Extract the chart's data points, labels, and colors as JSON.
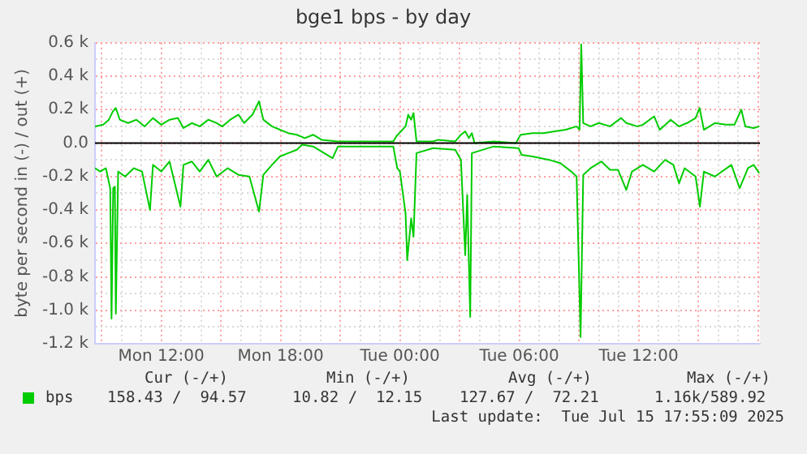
{
  "chart_data": {
    "type": "line",
    "title": "bge1 bps - by day",
    "ylabel": "byte per second in (-) / out (+)",
    "xlim": [
      "2025-07-14T08:40",
      "2025-07-15T18:06"
    ],
    "xticks": [
      {
        "value": "2025-07-14T09:00",
        "label": null
      },
      {
        "value": "2025-07-14T10:00",
        "label": null
      },
      {
        "value": "2025-07-14T11:00",
        "label": null
      },
      {
        "value": "2025-07-14T12:00",
        "label": "Mon 12:00"
      },
      {
        "value": "2025-07-14T13:00",
        "label": null
      },
      {
        "value": "2025-07-14T14:00",
        "label": null
      },
      {
        "value": "2025-07-14T15:00",
        "label": null
      },
      {
        "value": "2025-07-14T16:00",
        "label": null
      },
      {
        "value": "2025-07-14T17:00",
        "label": null
      },
      {
        "value": "2025-07-14T18:00",
        "label": "Mon 18:00"
      },
      {
        "value": "2025-07-14T19:00",
        "label": null
      },
      {
        "value": "2025-07-14T20:00",
        "label": null
      },
      {
        "value": "2025-07-14T21:00",
        "label": null
      },
      {
        "value": "2025-07-14T22:00",
        "label": null
      },
      {
        "value": "2025-07-14T23:00",
        "label": null
      },
      {
        "value": "2025-07-15T00:00",
        "label": "Tue 00:00"
      },
      {
        "value": "2025-07-15T01:00",
        "label": null
      },
      {
        "value": "2025-07-15T02:00",
        "label": null
      },
      {
        "value": "2025-07-15T03:00",
        "label": null
      },
      {
        "value": "2025-07-15T04:00",
        "label": null
      },
      {
        "value": "2025-07-15T05:00",
        "label": null
      },
      {
        "value": "2025-07-15T06:00",
        "label": "Tue 06:00"
      },
      {
        "value": "2025-07-15T07:00",
        "label": null
      },
      {
        "value": "2025-07-15T08:00",
        "label": null
      },
      {
        "value": "2025-07-15T09:00",
        "label": null
      },
      {
        "value": "2025-07-15T10:00",
        "label": null
      },
      {
        "value": "2025-07-15T11:00",
        "label": null
      },
      {
        "value": "2025-07-15T12:00",
        "label": "Tue 12:00"
      },
      {
        "value": "2025-07-15T13:00",
        "label": null
      },
      {
        "value": "2025-07-15T14:00",
        "label": null
      },
      {
        "value": "2025-07-15T15:00",
        "label": null
      },
      {
        "value": "2025-07-15T16:00",
        "label": null
      },
      {
        "value": "2025-07-15T17:00",
        "label": null
      },
      {
        "value": "2025-07-15T18:00",
        "label": null
      }
    ],
    "ylim": [
      -1200,
      600
    ],
    "yticks": [
      {
        "value": -1200,
        "label": "-1.2 k"
      },
      {
        "value": -1100,
        "label": null
      },
      {
        "value": -1000,
        "label": "-1.0 k"
      },
      {
        "value": -900,
        "label": null
      },
      {
        "value": -800,
        "label": "-0.8 k"
      },
      {
        "value": -700,
        "label": null
      },
      {
        "value": -600,
        "label": "-0.6 k"
      },
      {
        "value": -500,
        "label": null
      },
      {
        "value": -400,
        "label": "-0.4 k"
      },
      {
        "value": -300,
        "label": null
      },
      {
        "value": -200,
        "label": "-0.2 k"
      },
      {
        "value": -100,
        "label": null
      },
      {
        "value": 0,
        "label": "0.0"
      },
      {
        "value": 100,
        "label": null
      },
      {
        "value": 200,
        "label": "0.2 k"
      },
      {
        "value": 300,
        "label": null
      },
      {
        "value": 400,
        "label": "0.4 k"
      },
      {
        "value": 500,
        "label": null
      },
      {
        "value": 600,
        "label": "0.6 k"
      }
    ],
    "grid": true,
    "legend": "bottom left",
    "ref_lines": [
      {
        "axis": "y",
        "value": 0,
        "color": "#000000"
      }
    ],
    "annotations": [
      "Cur (-/+)",
      "Min (-/+)",
      "Avg (-/+)",
      "Max (-/+)",
      "158.43 /  94.57",
      "10.82 /  12.15",
      "127.67 /  72.21",
      "1.16k/589.92",
      "Last update:  Tue Jul 15 17:55:09 2025"
    ],
    "series": [
      {
        "name": "bps",
        "color": "#00cc00",
        "x": [
          "2025-07-14T08:40",
          "2025-07-14T09:05",
          "2025-07-14T09:22",
          "2025-07-14T09:34",
          "2025-07-14T09:43",
          "2025-07-14T09:55",
          "2025-07-14T10:20",
          "2025-07-14T10:45",
          "2025-07-14T11:10",
          "2025-07-14T11:35",
          "2025-07-14T12:00",
          "2025-07-14T12:25",
          "2025-07-14T12:50",
          "2025-07-14T13:07",
          "2025-07-14T13:32",
          "2025-07-14T13:56",
          "2025-07-14T14:22",
          "2025-07-14T14:47",
          "2025-07-14T15:04",
          "2025-07-14T15:28",
          "2025-07-14T15:53",
          "2025-07-14T16:10",
          "2025-07-14T16:35",
          "2025-07-14T16:55",
          "2025-07-14T17:08",
          "2025-07-14T17:34",
          "2025-07-14T17:58",
          "2025-07-14T18:23",
          "2025-07-14T18:49",
          "2025-07-14T19:13",
          "2025-07-14T19:38",
          "2025-07-14T20:04",
          "2025-07-14T20:53",
          "2025-07-14T22:34",
          "2025-07-14T23:40",
          "2025-07-14T23:49",
          "2025-07-15T00:17",
          "2025-07-15T00:25",
          "2025-07-15T00:34",
          "2025-07-15T00:41",
          "2025-07-15T00:50",
          "2025-07-15T01:40",
          "2025-07-15T01:56",
          "2025-07-15T02:47",
          "2025-07-15T03:04",
          "2025-07-15T03:17",
          "2025-07-15T03:28",
          "2025-07-15T03:37",
          "2025-07-15T03:45",
          "2025-07-15T04:43",
          "2025-07-15T05:50",
          "2025-07-15T06:04",
          "2025-07-15T06:40",
          "2025-07-15T07:13",
          "2025-07-15T07:47",
          "2025-07-15T08:20",
          "2025-07-15T08:53",
          "2025-07-15T09:02",
          "2025-07-15T09:07",
          "2025-07-15T09:13",
          "2025-07-15T09:35",
          "2025-07-15T10:00",
          "2025-07-15T10:34",
          "2025-07-15T11:07",
          "2025-07-15T11:23",
          "2025-07-15T11:56",
          "2025-07-15T12:13",
          "2025-07-15T12:47",
          "2025-07-15T13:04",
          "2025-07-15T13:37",
          "2025-07-15T14:02",
          "2025-07-15T14:26",
          "2025-07-15T14:52",
          "2025-07-15T15:04",
          "2025-07-15T15:17",
          "2025-07-15T15:50",
          "2025-07-15T16:23",
          "2025-07-15T16:49",
          "2025-07-15T17:10",
          "2025-07-15T17:22",
          "2025-07-15T17:47",
          "2025-07-15T18:04"
        ],
        "values": [
          100,
          110,
          140,
          190,
          210,
          140,
          120,
          140,
          100,
          150,
          110,
          140,
          150,
          90,
          120,
          100,
          140,
          120,
          100,
          140,
          170,
          120,
          170,
          250,
          140,
          100,
          80,
          60,
          50,
          30,
          50,
          20,
          10,
          10,
          10,
          40,
          100,
          170,
          140,
          180,
          10,
          10,
          20,
          10,
          50,
          70,
          30,
          60,
          0,
          10,
          0,
          50,
          60,
          60,
          70,
          80,
          100,
          80,
          590,
          120,
          100,
          120,
          100,
          150,
          120,
          100,
          110,
          160,
          80,
          140,
          100,
          120,
          150,
          210,
          80,
          120,
          110,
          110,
          200,
          100,
          90,
          100
        ]
      },
      {
        "color": "#00cc00",
        "x": [
          "2025-07-14T08:40",
          "2025-07-14T08:56",
          "2025-07-14T09:13",
          "2025-07-14T09:26",
          "2025-07-14T09:30",
          "2025-07-14T09:35",
          "2025-07-14T09:40",
          "2025-07-14T09:43",
          "2025-07-14T09:50",
          "2025-07-14T10:11",
          "2025-07-14T10:37",
          "2025-07-14T11:02",
          "2025-07-14T11:26",
          "2025-07-14T11:35",
          "2025-07-14T12:00",
          "2025-07-14T12:25",
          "2025-07-14T12:58",
          "2025-07-14T13:07",
          "2025-07-14T13:32",
          "2025-07-14T13:56",
          "2025-07-14T14:22",
          "2025-07-14T14:47",
          "2025-07-14T15:20",
          "2025-07-14T15:53",
          "2025-07-14T16:26",
          "2025-07-14T16:55",
          "2025-07-14T17:08",
          "2025-07-14T17:34",
          "2025-07-14T17:58",
          "2025-07-14T18:23",
          "2025-07-14T18:49",
          "2025-07-14T19:05",
          "2025-07-14T19:38",
          "2025-07-14T20:37",
          "2025-07-14T20:53",
          "2025-07-14T22:34",
          "2025-07-14T23:40",
          "2025-07-14T23:52",
          "2025-07-15T00:00",
          "2025-07-15T00:17",
          "2025-07-15T00:22",
          "2025-07-15T00:34",
          "2025-07-15T00:41",
          "2025-07-15T00:50",
          "2025-07-15T01:40",
          "2025-07-15T02:47",
          "2025-07-15T03:04",
          "2025-07-15T03:17",
          "2025-07-15T03:23",
          "2025-07-15T03:32",
          "2025-07-15T03:37",
          "2025-07-15T04:43",
          "2025-07-15T05:58",
          "2025-07-15T06:07",
          "2025-07-15T06:40",
          "2025-07-15T07:30",
          "2025-07-15T08:04",
          "2025-07-15T08:37",
          "2025-07-15T08:53",
          "2025-07-15T09:05",
          "2025-07-15T09:13",
          "2025-07-15T09:35",
          "2025-07-15T10:08",
          "2025-07-15T10:34",
          "2025-07-15T10:58",
          "2025-07-15T11:23",
          "2025-07-15T11:40",
          "2025-07-15T12:13",
          "2025-07-15T12:47",
          "2025-07-15T13:20",
          "2025-07-15T13:45",
          "2025-07-15T14:02",
          "2025-07-15T14:19",
          "2025-07-15T14:52",
          "2025-07-15T15:05",
          "2025-07-15T15:17",
          "2025-07-15T15:50",
          "2025-07-15T16:40",
          "2025-07-15T17:05",
          "2025-07-15T17:30",
          "2025-07-15T17:47",
          "2025-07-15T18:04"
        ],
        "values": [
          -150,
          -170,
          -150,
          -270,
          -1050,
          -270,
          -260,
          -1020,
          -170,
          -200,
          -150,
          -170,
          -400,
          -130,
          -170,
          -110,
          -380,
          -130,
          -110,
          -170,
          -100,
          -200,
          -150,
          -190,
          -200,
          -410,
          -190,
          -130,
          -80,
          -60,
          -40,
          -10,
          -20,
          -90,
          -20,
          -20,
          -20,
          -150,
          -170,
          -420,
          -700,
          -450,
          -560,
          -60,
          -30,
          -40,
          -100,
          -670,
          -310,
          -1040,
          -60,
          -20,
          -30,
          -70,
          -80,
          -100,
          -120,
          -170,
          -200,
          -1160,
          -190,
          -150,
          -110,
          -160,
          -160,
          -280,
          -170,
          -130,
          -170,
          -100,
          -130,
          -240,
          -150,
          -200,
          -380,
          -170,
          -200,
          -130,
          -270,
          -150,
          -130,
          -180
        ]
      }
    ]
  }
}
